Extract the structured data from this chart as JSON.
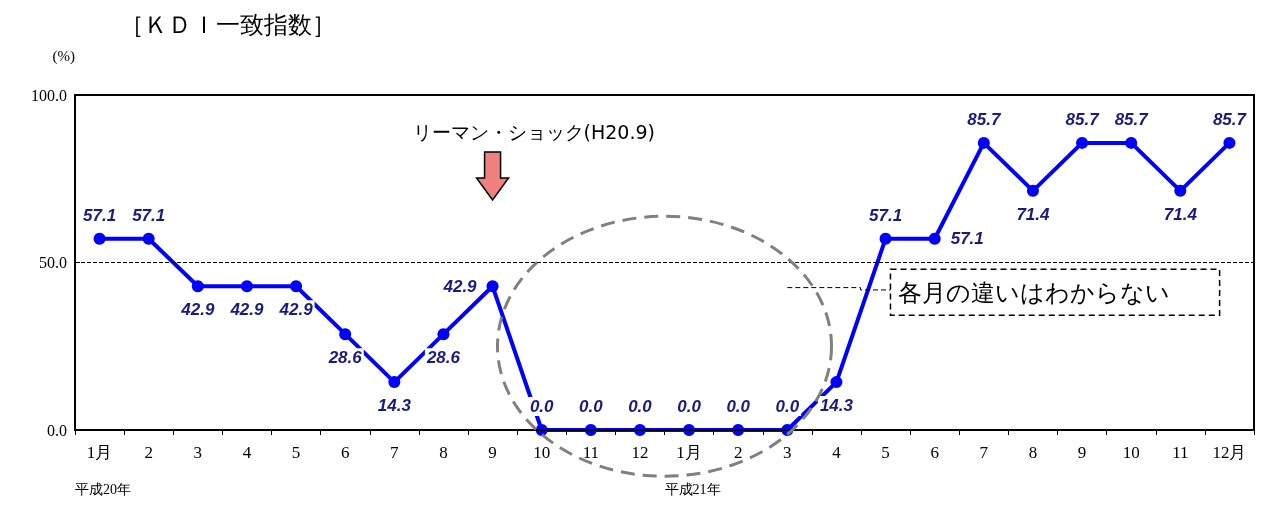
{
  "chart_data": {
    "type": "line",
    "title": "［ＫＤＩ一致指数］",
    "ylabel": "(%)",
    "categories": [
      "1月",
      "2",
      "3",
      "4",
      "5",
      "6",
      "7",
      "8",
      "9",
      "10",
      "11",
      "12",
      "1月",
      "2",
      "3",
      "4",
      "5",
      "6",
      "7",
      "8",
      "9",
      "10",
      "11",
      "12月"
    ],
    "series": [
      {
        "color": "#0000ff",
        "values": [
          57.1,
          57.1,
          42.9,
          42.9,
          42.9,
          28.6,
          14.3,
          28.6,
          42.9,
          0.0,
          0.0,
          0.0,
          0.0,
          0.0,
          0.0,
          14.3,
          57.1,
          57.1,
          85.7,
          71.4,
          85.7,
          85.7,
          71.4,
          85.7
        ]
      }
    ],
    "ylim": [
      0,
      100
    ],
    "yticks": [
      {
        "value": 0,
        "label": "0.0"
      },
      {
        "value": 50,
        "label": "50.0"
      },
      {
        "value": 100,
        "label": "100.0"
      }
    ],
    "ref_lines": [
      {
        "axis": "y",
        "value": 50,
        "line_style": "dashed",
        "color": "#000000"
      }
    ],
    "annotations": [
      "平成20年",
      "平成21年",
      "リーマン・ショック(H20.9)",
      "各月の違いはわからない"
    ],
    "value_labels": [
      "57.1",
      "57.1",
      "42.9",
      "42.9",
      "42.9",
      "28.6",
      "14.3",
      "28.6",
      "42.9",
      "0.0",
      "0.0",
      "0.0",
      "0.0",
      "0.0",
      "0.0",
      "14.3",
      "57.1",
      "57.1",
      "85.7",
      "71.4",
      "85.7",
      "85.7",
      "71.4",
      "85.7"
    ],
    "marker": "circle",
    "line_style": "solid",
    "grid": false
  }
}
